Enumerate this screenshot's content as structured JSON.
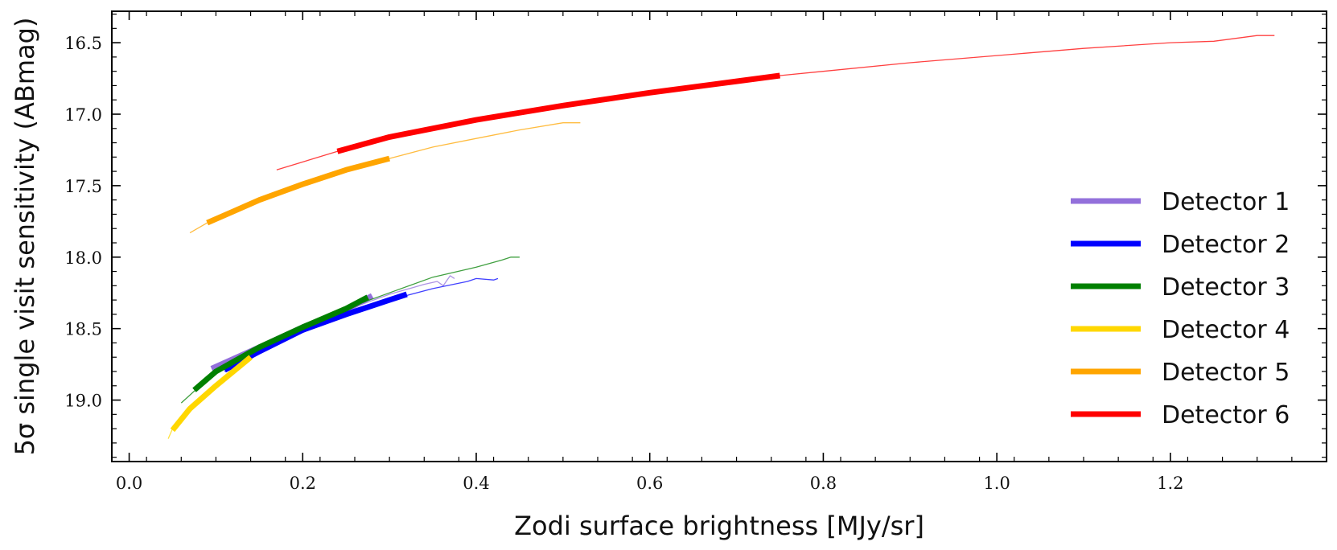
{
  "chart_data": {
    "type": "line",
    "xlabel": "Zodi surface brightness [MJy/sr]",
    "ylabel": "5σ single visit sensitivity (ABmag)",
    "xlim": [
      -0.02,
      1.38
    ],
    "ylim": [
      19.43,
      16.28
    ],
    "y_inverted": true,
    "xticks": [
      0.0,
      0.2,
      0.4,
      0.6,
      0.8,
      1.0,
      1.2
    ],
    "xtick_labels": [
      "0.0",
      "0.2",
      "0.4",
      "0.6",
      "0.8",
      "1.0",
      "1.2"
    ],
    "yticks": [
      16.5,
      17.0,
      17.5,
      18.0,
      18.5,
      19.0
    ],
    "ytick_labels": [
      "16.5",
      "17.0",
      "17.5",
      "18.0",
      "18.5",
      "19.0"
    ],
    "legend_position": "lower-right",
    "series": [
      {
        "name": "Detector 1",
        "color": "#9370DB",
        "thin": [
          [
            0.095,
            18.78
          ],
          [
            0.15,
            18.63
          ],
          [
            0.2,
            18.49
          ],
          [
            0.25,
            18.37
          ],
          [
            0.3,
            18.26
          ],
          [
            0.34,
            18.19
          ],
          [
            0.355,
            18.17
          ],
          [
            0.362,
            18.2
          ],
          [
            0.37,
            18.13
          ],
          [
            0.375,
            18.15
          ]
        ],
        "thick": [
          [
            0.095,
            18.78
          ],
          [
            0.15,
            18.63
          ],
          [
            0.2,
            18.49
          ],
          [
            0.25,
            18.37
          ],
          [
            0.28,
            18.27
          ]
        ]
      },
      {
        "name": "Detector 2",
        "color": "#0000FF",
        "thin": [
          [
            0.11,
            18.8
          ],
          [
            0.15,
            18.66
          ],
          [
            0.2,
            18.51
          ],
          [
            0.25,
            18.39
          ],
          [
            0.3,
            18.3
          ],
          [
            0.35,
            18.22
          ],
          [
            0.39,
            18.17
          ],
          [
            0.4,
            18.15
          ],
          [
            0.42,
            18.16
          ],
          [
            0.425,
            18.15
          ]
        ],
        "thick": [
          [
            0.11,
            18.79
          ],
          [
            0.15,
            18.66
          ],
          [
            0.2,
            18.51
          ],
          [
            0.25,
            18.4
          ],
          [
            0.3,
            18.3
          ],
          [
            0.32,
            18.26
          ]
        ]
      },
      {
        "name": "Detector 3",
        "color": "#008000",
        "thin": [
          [
            0.06,
            19.02
          ],
          [
            0.1,
            18.8
          ],
          [
            0.15,
            18.62
          ],
          [
            0.2,
            18.48
          ],
          [
            0.25,
            18.36
          ],
          [
            0.3,
            18.25
          ],
          [
            0.35,
            18.14
          ],
          [
            0.4,
            18.07
          ],
          [
            0.43,
            18.02
          ],
          [
            0.44,
            18.0
          ],
          [
            0.45,
            18.0
          ]
        ],
        "thick": [
          [
            0.075,
            18.93
          ],
          [
            0.1,
            18.8
          ],
          [
            0.15,
            18.63
          ],
          [
            0.2,
            18.49
          ],
          [
            0.25,
            18.36
          ],
          [
            0.275,
            18.28
          ]
        ]
      },
      {
        "name": "Detector 4",
        "color": "#FFD700",
        "thin": [
          [
            0.045,
            19.27
          ],
          [
            0.05,
            19.2
          ],
          [
            0.07,
            19.06
          ],
          [
            0.1,
            18.9
          ],
          [
            0.14,
            18.7
          ]
        ],
        "thick": [
          [
            0.05,
            19.21
          ],
          [
            0.07,
            19.06
          ],
          [
            0.1,
            18.9
          ],
          [
            0.14,
            18.7
          ]
        ]
      },
      {
        "name": "Detector 5",
        "color": "#FFA500",
        "thin": [
          [
            0.07,
            17.83
          ],
          [
            0.09,
            17.76
          ],
          [
            0.15,
            17.6
          ],
          [
            0.2,
            17.49
          ],
          [
            0.25,
            17.39
          ],
          [
            0.3,
            17.31
          ],
          [
            0.35,
            17.23
          ],
          [
            0.4,
            17.17
          ],
          [
            0.45,
            17.11
          ],
          [
            0.5,
            17.06
          ],
          [
            0.52,
            17.06
          ]
        ],
        "thick": [
          [
            0.09,
            17.76
          ],
          [
            0.12,
            17.68
          ],
          [
            0.15,
            17.6
          ],
          [
            0.2,
            17.49
          ],
          [
            0.25,
            17.39
          ],
          [
            0.3,
            17.31
          ]
        ]
      },
      {
        "name": "Detector 6",
        "color": "#FF0000",
        "thin": [
          [
            0.17,
            17.39
          ],
          [
            0.24,
            17.26
          ],
          [
            0.3,
            17.16
          ],
          [
            0.4,
            17.04
          ],
          [
            0.5,
            16.94
          ],
          [
            0.6,
            16.85
          ],
          [
            0.7,
            16.77
          ],
          [
            0.75,
            16.73
          ],
          [
            0.8,
            16.7
          ],
          [
            0.9,
            16.64
          ],
          [
            1.0,
            16.59
          ],
          [
            1.1,
            16.54
          ],
          [
            1.2,
            16.5
          ],
          [
            1.25,
            16.49
          ],
          [
            1.3,
            16.45
          ],
          [
            1.32,
            16.45
          ]
        ],
        "thick": [
          [
            0.24,
            17.26
          ],
          [
            0.3,
            17.16
          ],
          [
            0.4,
            17.04
          ],
          [
            0.5,
            16.94
          ],
          [
            0.6,
            16.85
          ],
          [
            0.7,
            16.77
          ],
          [
            0.75,
            16.73
          ]
        ]
      }
    ]
  }
}
